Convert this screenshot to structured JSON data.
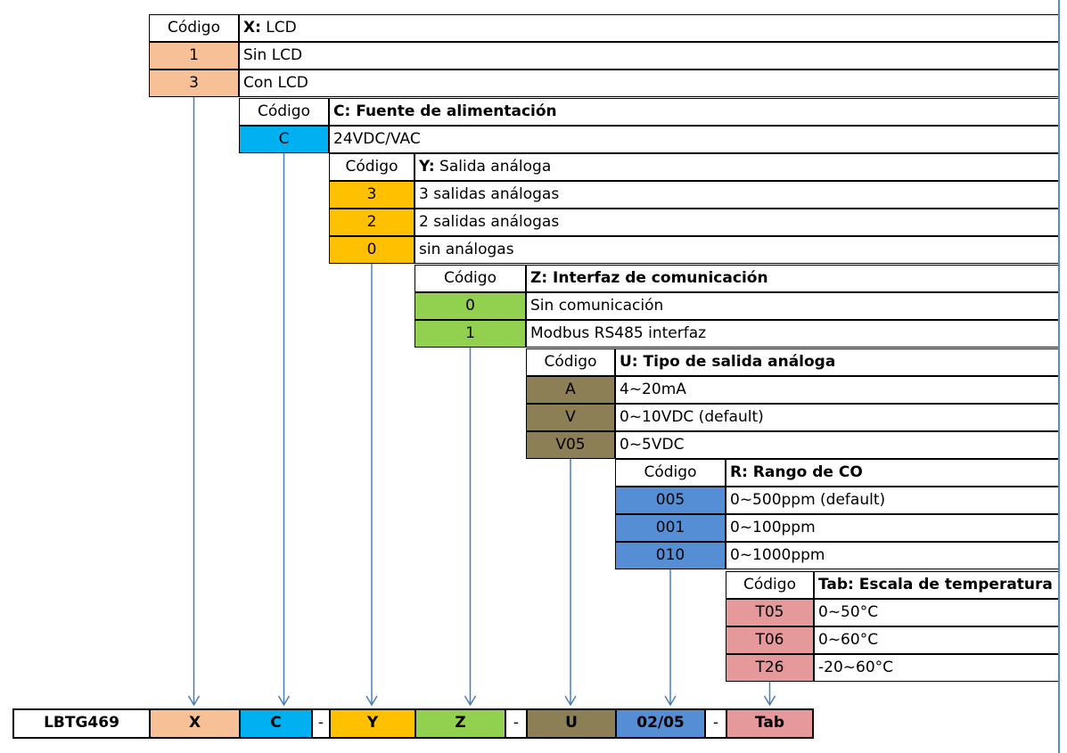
{
  "colors": {
    "X": "#f8c096",
    "C": "#00b0f0",
    "Y": "#ffc000",
    "Z": "#92d050",
    "U": "#8c7f55",
    "R": "#558ed5",
    "Tab": "#e6999a",
    "arrow": "#4a7ebb"
  },
  "sections": [
    {
      "key": "X",
      "header_code": "Código",
      "title_bold": "X:",
      "title_rest": " LCD",
      "rows": [
        {
          "code": "1",
          "desc": "Sin LCD"
        },
        {
          "code": "3",
          "desc": "Con LCD"
        }
      ]
    },
    {
      "key": "C",
      "header_code": "Código",
      "title_bold": "C: Fuente de alimentación",
      "title_rest": "",
      "rows": [
        {
          "code": "C",
          "desc": "24VDC/VAC"
        }
      ]
    },
    {
      "key": "Y",
      "header_code": "Código",
      "title_bold": "Y:",
      "title_rest": " Salida análoga",
      "rows": [
        {
          "code": "3",
          "desc": "3 salidas análogas"
        },
        {
          "code": "2",
          "desc": "2 salidas análogas"
        },
        {
          "code": "0",
          "desc": "sin análogas"
        }
      ]
    },
    {
      "key": "Z",
      "header_code": "Código",
      "title_bold": "Z: Interfaz de comunicación",
      "title_rest": "",
      "rows": [
        {
          "code": "0",
          "desc": "Sin comunicación"
        },
        {
          "code": "1",
          "desc": "Modbus RS485 interfaz"
        }
      ]
    },
    {
      "key": "U",
      "header_code": "Código",
      "title_bold": "U: Tipo de salida análoga",
      "title_rest": "",
      "rows": [
        {
          "code": "A",
          "desc": "4~20mA"
        },
        {
          "code": "V",
          "desc": "0~10VDC (default)"
        },
        {
          "code": "V05",
          "desc": "0~5VDC"
        }
      ]
    },
    {
      "key": "R",
      "header_code": "Código",
      "title_bold": "R: Rango de CO",
      "title_rest": "",
      "rows": [
        {
          "code": "005",
          "desc": "0~500ppm (default)"
        },
        {
          "code": "001",
          "desc": "0~100ppm"
        },
        {
          "code": "010",
          "desc": "0~1000ppm"
        }
      ]
    },
    {
      "key": "Tab",
      "header_code": "Código",
      "title_bold": "Tab: Escala de temperatura",
      "title_rest": "",
      "rows": [
        {
          "code": "T05",
          "desc": "0~50°C"
        },
        {
          "code": "T06",
          "desc": "0~60°C"
        },
        {
          "code": "T26",
          "desc": "-20~60°C"
        }
      ]
    }
  ],
  "model_bar": [
    {
      "label": "LBTG469",
      "color": "#ffffff"
    },
    {
      "label": "X",
      "color": "#f8c096"
    },
    {
      "label": "C",
      "color": "#00b0f0"
    },
    {
      "label": "-",
      "color": "#ffffff"
    },
    {
      "label": "Y",
      "color": "#ffc000"
    },
    {
      "label": "Z",
      "color": "#92d050"
    },
    {
      "label": "-",
      "color": "#ffffff"
    },
    {
      "label": "U",
      "color": "#8c7f55"
    },
    {
      "label": "02/05",
      "color": "#558ed5"
    },
    {
      "label": "-",
      "color": "#ffffff"
    },
    {
      "label": "Tab",
      "color": "#e6999a"
    }
  ]
}
